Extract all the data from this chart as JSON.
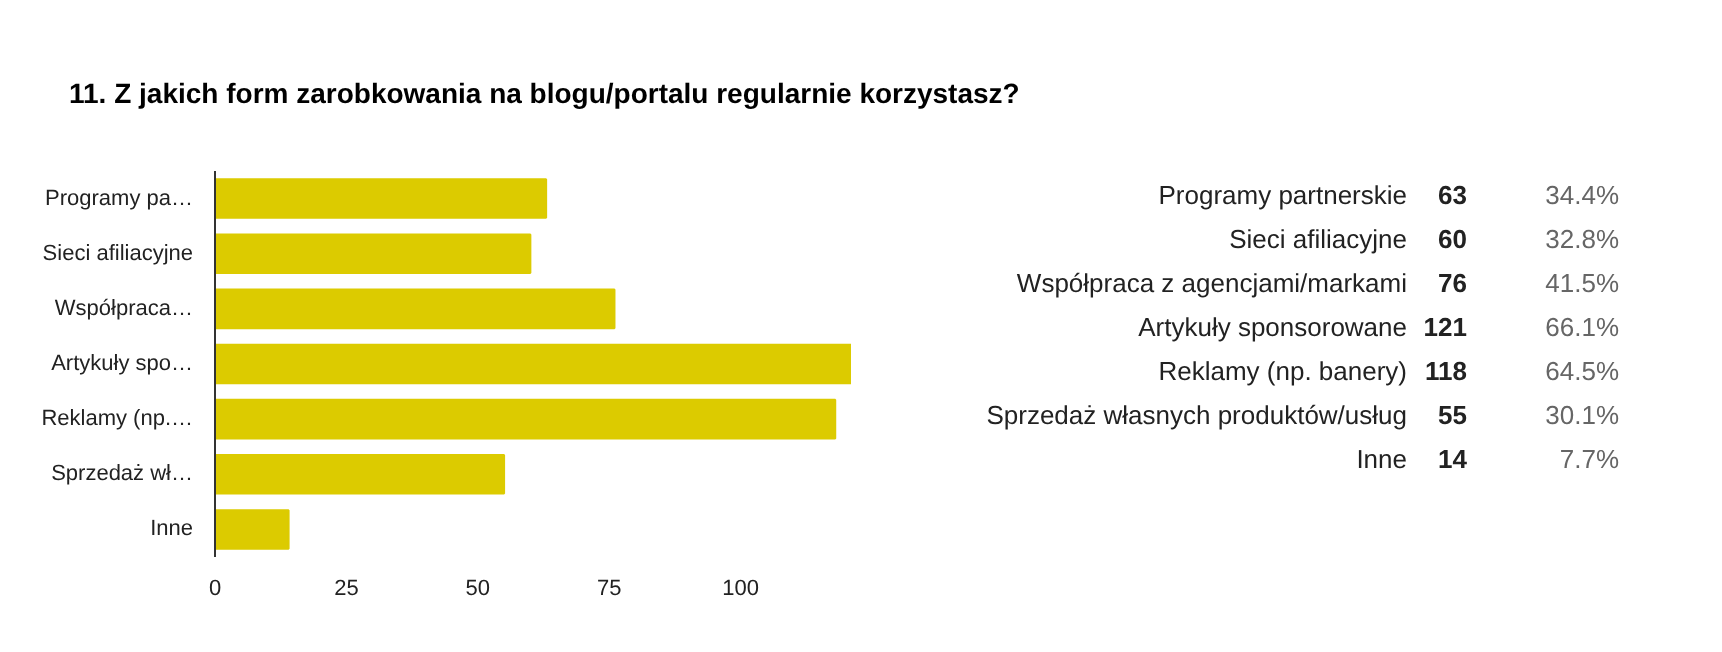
{
  "chart_data": [
    {
      "type": "bar",
      "orientation": "horizontal",
      "title": "11. Z jakich form zarobkowania na blogu/portalu regularnie korzystasz?",
      "categories": [
        "Programy pa…",
        "Sieci afiliacyjne",
        "Współpraca…",
        "Artykuły spo…",
        "Reklamy (np.…",
        "Sprzedaż wł…",
        "Inne"
      ],
      "values": [
        63,
        60,
        76,
        121,
        118,
        55,
        14
      ],
      "color": "#dccb00",
      "xlim": [
        0,
        121
      ],
      "xticks": [
        0,
        25,
        50,
        75,
        100
      ]
    },
    {
      "type": "other",
      "categories": [
        "Programy partnerskie",
        "Sieci afiliacyjne",
        "Współpraca z agencjami/markami",
        "Artykuły sponsorowane",
        "Reklamy (np. banery)",
        "Sprzedaż własnych produktów/usług",
        "Inne"
      ],
      "values": [
        63,
        60,
        76,
        121,
        118,
        55,
        14
      ],
      "data_labels": true,
      "annotations": [
        "34.4%",
        "32.8%",
        "41.5%",
        "66.1%",
        "64.5%",
        "30.1%",
        "7.7%"
      ]
    }
  ]
}
